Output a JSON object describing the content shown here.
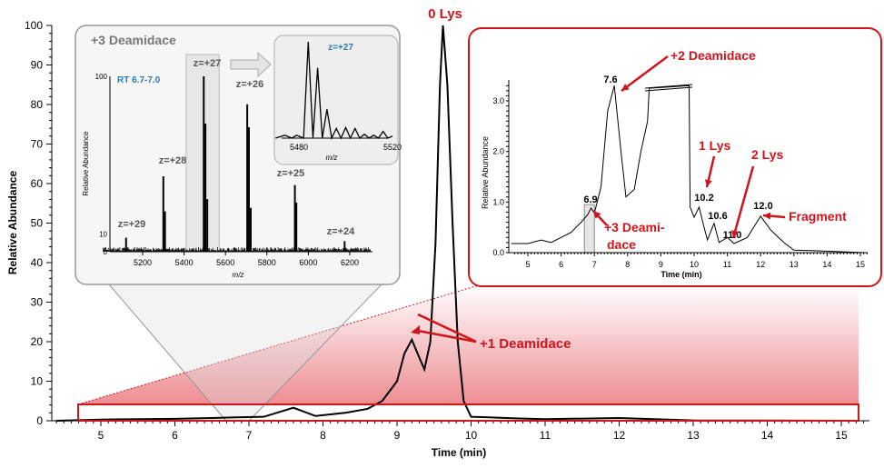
{
  "chart_data": [
    {
      "type": "line",
      "xlabel": "Time (min)",
      "ylabel": "Relative Abundance",
      "xlim": [
        4.35,
        15.35
      ],
      "ylim": [
        0,
        100
      ],
      "xticks": [
        5,
        6,
        7,
        8,
        9,
        10,
        11,
        12,
        13,
        14,
        15
      ],
      "yticks": [
        0,
        10,
        20,
        30,
        40,
        50,
        60,
        70,
        80,
        90,
        100
      ],
      "x": [
        4.4,
        5,
        6,
        6.5,
        6.9,
        7.2,
        7.6,
        7.9,
        8.3,
        8.6,
        8.8,
        9.0,
        9.1,
        9.2,
        9.3,
        9.37,
        9.45,
        9.52,
        9.58,
        9.62,
        9.68,
        9.75,
        9.82,
        9.9,
        10.0,
        10.2,
        10.6,
        11,
        12,
        13,
        15.2
      ],
      "y": [
        0,
        0.3,
        0.5,
        0.7,
        0.9,
        1,
        3.3,
        1.2,
        2,
        3,
        5,
        10,
        17,
        20.5,
        16,
        13,
        20,
        45,
        85,
        100,
        85,
        50,
        20,
        5,
        1,
        0.9,
        0.6,
        0.4,
        0.7,
        0.1,
        0
      ],
      "annotations": [
        {
          "text": "0 Lys",
          "x": 9.62
        },
        {
          "text": "+1 Deamidace",
          "x": 9.2
        }
      ],
      "color": "#000000",
      "accent": "#d0141c"
    },
    {
      "type": "bar",
      "title": "+3 Deamidace",
      "subtitle": "RT 6.7-7.0",
      "xlabel": "m/z",
      "ylabel": "Relative Abundance",
      "xlim": [
        5000,
        6300
      ],
      "ylim": [
        0,
        100
      ],
      "xticks": [
        5200,
        5400,
        5600,
        5800,
        6000,
        6200
      ],
      "yticks": [
        0,
        10,
        100
      ],
      "peaks": [
        {
          "mz": 5120,
          "value": 8
        },
        {
          "mz": 5300,
          "value": 43
        },
        {
          "mz": 5308,
          "value": 23
        },
        {
          "mz": 5495,
          "value": 100
        },
        {
          "mz": 5503,
          "value": 73
        },
        {
          "mz": 5512,
          "value": 30
        },
        {
          "mz": 5705,
          "value": 84
        },
        {
          "mz": 5713,
          "value": 71
        },
        {
          "mz": 5722,
          "value": 25
        },
        {
          "mz": 5935,
          "value": 38
        },
        {
          "mz": 5942,
          "value": 28
        },
        {
          "mz": 6175,
          "value": 6
        }
      ],
      "charge_labels": [
        {
          "text": "z=+29",
          "mz": 5120
        },
        {
          "text": "z=+28",
          "mz": 5300
        },
        {
          "text": "z=+27",
          "mz": 5495
        },
        {
          "text": "z=+26",
          "mz": 5705
        },
        {
          "text": "z=+25",
          "mz": 5935
        },
        {
          "text": "z=+24",
          "mz": 6175
        }
      ],
      "highlight_range": [
        5410,
        5570
      ]
    },
    {
      "type": "line",
      "title": "z=+27",
      "xlabel": "m/z",
      "xlim": [
        5470,
        5522
      ],
      "xticks": [
        5480,
        5520
      ],
      "x": [
        5470,
        5474,
        5477,
        5479,
        5482,
        5484,
        5486,
        5488,
        5490,
        5492,
        5494,
        5496,
        5498,
        5500,
        5502,
        5504,
        5506,
        5508,
        5510,
        5512,
        5514,
        5516,
        5518,
        5520
      ],
      "y": [
        0,
        3,
        0,
        3,
        0,
        100,
        0,
        73,
        0,
        30,
        0,
        10,
        0,
        11,
        0,
        10,
        0,
        4,
        0,
        3,
        0,
        7,
        0,
        2
      ]
    },
    {
      "type": "line",
      "xlabel": "Time (min)",
      "ylabel": "Relative Abundance",
      "xlim": [
        4.5,
        15.2
      ],
      "ylim": [
        0,
        3.4
      ],
      "xticks": [
        5,
        6,
        7,
        8,
        9,
        10,
        11,
        12,
        13,
        14,
        15
      ],
      "yticks": [
        0.0,
        1.0,
        2.0,
        3.0
      ],
      "x": [
        4.5,
        5,
        5.4,
        5.7,
        6,
        6.3,
        6.6,
        6.8,
        6.9,
        7.0,
        7.2,
        7.4,
        7.6,
        7.8,
        7.95,
        8.2,
        8.4,
        8.6,
        8.65,
        9.85,
        9.88,
        10.0,
        10.15,
        10.3,
        10.4,
        10.6,
        10.75,
        11.0,
        11.2,
        11.6,
        12.0,
        12.3,
        12.7,
        13,
        14,
        15.1
      ],
      "y": [
        0.18,
        0.18,
        0.25,
        0.2,
        0.3,
        0.4,
        0.6,
        0.75,
        0.88,
        0.78,
        1.3,
        2.8,
        3.3,
        2.0,
        1.1,
        1.25,
        2.0,
        2.6,
        3.25,
        3.3,
        0.9,
        0.7,
        0.9,
        0.5,
        0.25,
        0.58,
        0.2,
        0.3,
        0.18,
        0.3,
        0.72,
        0.45,
        0.2,
        0.05,
        0.03,
        0
      ],
      "peak_labels": [
        "6.9",
        "7.6",
        "10.2",
        "10.6",
        "11.0",
        "12.0"
      ],
      "annotations": [
        "+2 Deamidace",
        "1 Lys",
        "2 Lys",
        "Fragment",
        "+3 Deami-",
        "dace"
      ],
      "highlight_range": [
        6.7,
        7.0
      ]
    }
  ]
}
